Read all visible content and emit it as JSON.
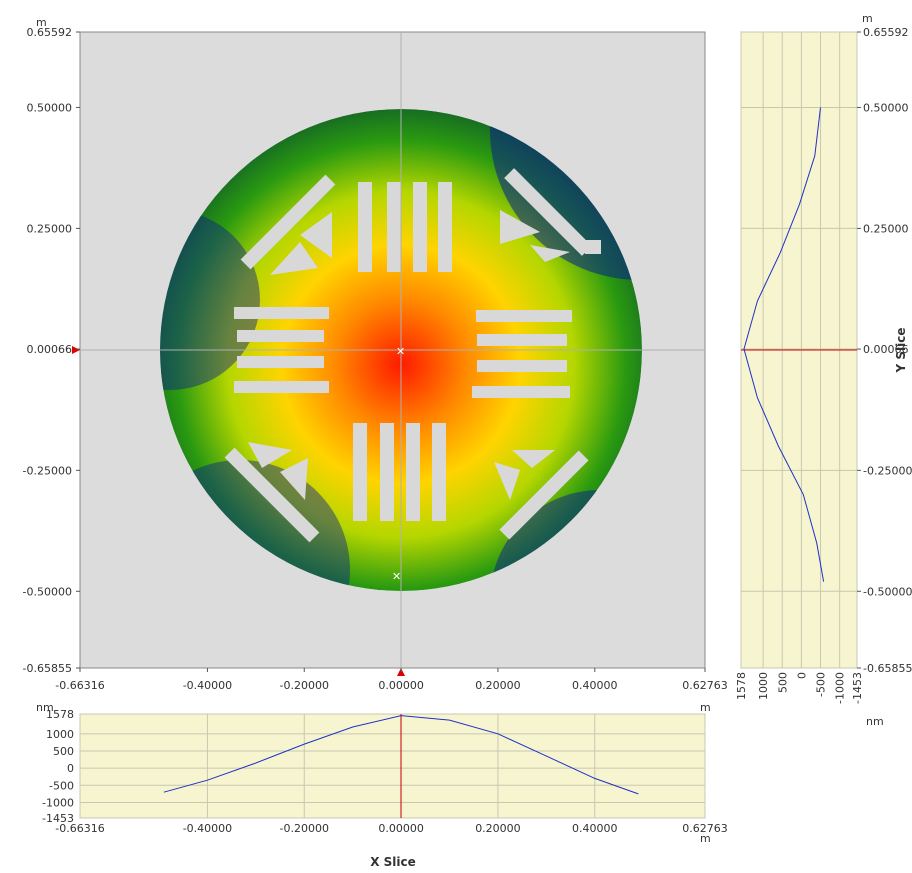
{
  "main_map": {
    "x_unit": "m",
    "y_unit": "m",
    "x_ticks": [
      "-0.66316",
      "-0.40000",
      "-0.20000",
      "0.00000",
      "0.20000",
      "0.40000",
      "0.62763"
    ],
    "y_ticks": [
      "0.65592",
      "0.50000",
      "0.25000",
      "0.00066",
      "-0.25000",
      "-0.50000",
      "-0.65855"
    ],
    "colorscale": [
      "#0a1e8c",
      "#0f5a2a",
      "#2a9a10",
      "#b4d600",
      "#ffd400",
      "#ff8a00",
      "#ff1a00"
    ],
    "background_color": "#dcdcdc"
  },
  "x_slice": {
    "title": "X Slice",
    "unit_top": "nm",
    "unit_bottom": "m",
    "y_ticks": [
      "1578",
      "1000",
      "500",
      "0",
      "-500",
      "-1000",
      "-1453"
    ],
    "x_ticks": [
      "-0.66316",
      "-0.40000",
      "-0.20000",
      "0.00000",
      "0.20000",
      "0.40000",
      "0.62763"
    ]
  },
  "y_slice": {
    "title": "Y Slice",
    "unit_top": "m",
    "unit_bottom": "nm",
    "x_ticks": [
      "1578",
      "1000",
      "500",
      "0",
      "-500",
      "-1000",
      "-1453"
    ],
    "y_ticks": [
      "0.65592",
      "0.50000",
      "0.25000",
      "0.00066",
      "-0.25000",
      "-0.50000",
      "-0.65855"
    ]
  },
  "chart_data": [
    {
      "type": "line",
      "title": "X Slice",
      "xlabel": "m",
      "ylabel": "nm",
      "xlim": [
        -0.66316,
        0.62763
      ],
      "ylim": [
        -1453,
        1578
      ],
      "series": [
        {
          "x": [
            -0.49,
            -0.4,
            -0.3,
            -0.2,
            -0.1,
            0.0,
            0.1,
            0.2,
            0.3,
            0.4,
            0.49
          ],
          "values": [
            -700,
            -350,
            150,
            700,
            1200,
            1530,
            1400,
            1000,
            350,
            -300,
            -750
          ]
        }
      ]
    },
    {
      "type": "line",
      "title": "Y Slice",
      "xlabel": "nm",
      "ylabel": "m",
      "xlim": [
        1578,
        -1453
      ],
      "ylim": [
        -0.65855,
        0.65592
      ],
      "series": [
        {
          "y": [
            0.5,
            0.4,
            0.3,
            0.2,
            0.1,
            0.00066,
            -0.1,
            -0.2,
            -0.3,
            -0.4,
            -0.48
          ],
          "values": [
            -500,
            -350,
            50,
            550,
            1150,
            1500,
            1150,
            600,
            -50,
            -400,
            -580
          ]
        }
      ]
    }
  ]
}
